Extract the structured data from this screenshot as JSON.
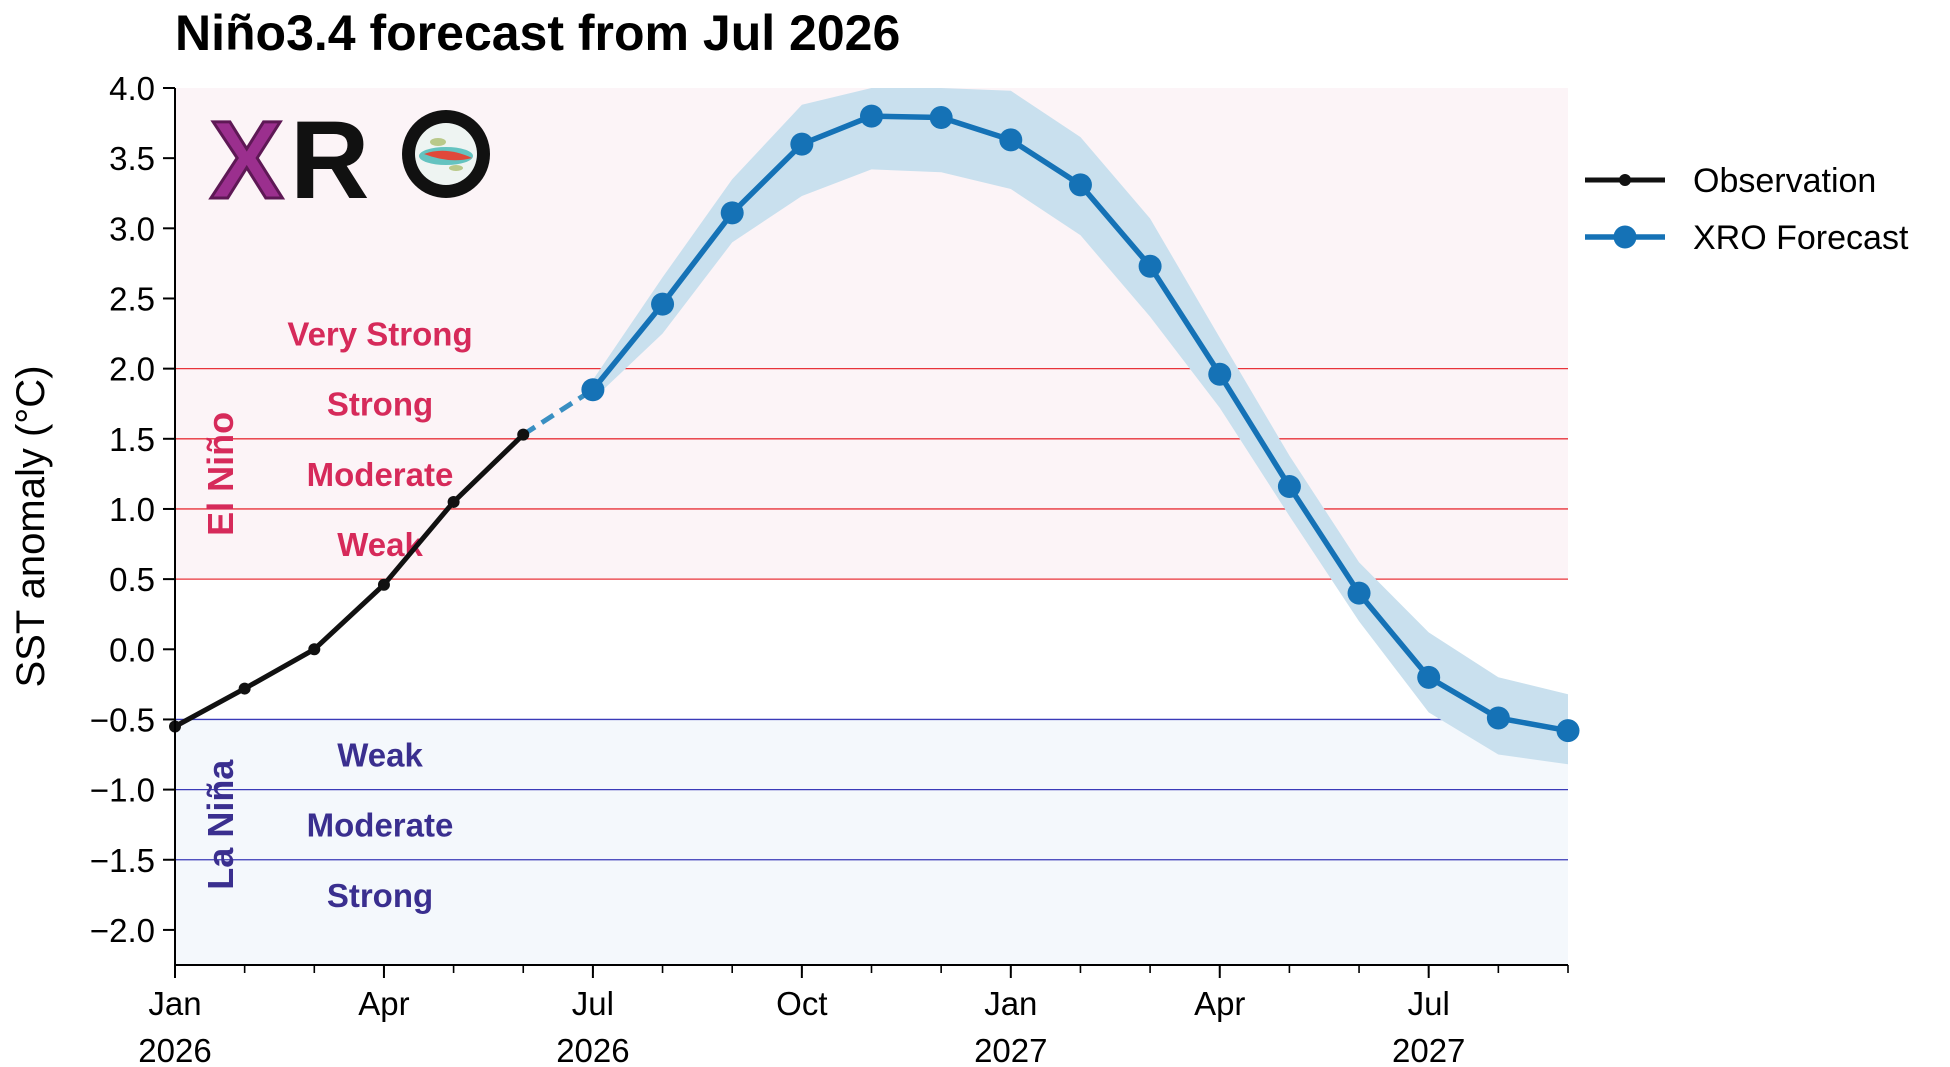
{
  "chart_data": {
    "type": "line",
    "title": "Niño3.4 forecast from Jul 2026",
    "ylabel": "SST anomaly (°C)",
    "xlabel": "",
    "ylim": [
      -2.25,
      4.0
    ],
    "yticks": [
      -2.0,
      -1.5,
      -1.0,
      -0.5,
      0.0,
      0.5,
      1.0,
      1.5,
      2.0,
      2.5,
      3.0,
      3.5,
      4.0
    ],
    "ytick_labels": [
      "−2.0",
      "−1.5",
      "−1.0",
      "−0.5",
      "0.0",
      "0.5",
      "1.0",
      "1.5",
      "2.0",
      "2.5",
      "3.0",
      "3.5",
      "4.0"
    ],
    "xlim": [
      "2026-01",
      "2027-09"
    ],
    "xticks": [
      {
        "month": "2026-01",
        "label1": "Jan",
        "label2": "2026"
      },
      {
        "month": "2026-04",
        "label1": "Apr",
        "label2": ""
      },
      {
        "month": "2026-07",
        "label1": "Jul",
        "label2": "2026"
      },
      {
        "month": "2026-10",
        "label1": "Oct",
        "label2": ""
      },
      {
        "month": "2027-01",
        "label1": "Jan",
        "label2": "2027"
      },
      {
        "month": "2027-04",
        "label1": "Apr",
        "label2": ""
      },
      {
        "month": "2027-07",
        "label1": "Jul",
        "label2": "2027"
      }
    ],
    "series": [
      {
        "name": "Observation",
        "color": "#111111",
        "x": [
          "2026-01",
          "2026-02",
          "2026-03",
          "2026-04",
          "2026-05",
          "2026-06"
        ],
        "y": [
          -0.55,
          -0.28,
          0.0,
          0.46,
          1.05,
          1.53
        ]
      },
      {
        "name": "XRO Forecast",
        "color": "#1572b6",
        "x": [
          "2026-07",
          "2026-08",
          "2026-09",
          "2026-10",
          "2026-11",
          "2026-12",
          "2027-01",
          "2027-02",
          "2027-03",
          "2027-04",
          "2027-05",
          "2027-06",
          "2027-07",
          "2027-08",
          "2027-09"
        ],
        "y": [
          1.85,
          2.46,
          3.11,
          3.6,
          3.8,
          3.79,
          3.63,
          3.31,
          2.73,
          1.96,
          1.16,
          0.4,
          -0.2,
          -0.49,
          -0.58
        ],
        "lower": [
          1.78,
          2.25,
          2.9,
          3.23,
          3.42,
          3.4,
          3.28,
          2.95,
          2.37,
          1.72,
          0.95,
          0.2,
          -0.45,
          -0.75,
          -0.82
        ],
        "upper": [
          1.92,
          2.65,
          3.35,
          3.88,
          4.05,
          4.1,
          3.98,
          3.65,
          3.07,
          2.22,
          1.38,
          0.62,
          0.12,
          -0.2,
          -0.32
        ]
      }
    ],
    "bridge_color": "#3a8fc2",
    "thresholds": [
      2.0,
      1.5,
      1.0,
      0.5,
      -0.5,
      -1.0,
      -1.5
    ],
    "el_nino": {
      "label": "El Niño",
      "categories": [
        {
          "label": "Very Strong",
          "y": 2.25
        },
        {
          "label": "Strong",
          "y": 1.75
        },
        {
          "label": "Moderate",
          "y": 1.25
        },
        {
          "label": "Weak",
          "y": 0.75
        }
      ],
      "line_color": "#e8333a",
      "shade_color": "#fcf4f7"
    },
    "la_nina": {
      "label": "La Niña",
      "categories": [
        {
          "label": "Weak",
          "y": -0.75
        },
        {
          "label": "Moderate",
          "y": -1.25
        },
        {
          "label": "Strong",
          "y": -1.75
        }
      ],
      "line_color": "#3a3ab8",
      "shade_color": "#f4f8fc"
    },
    "legend": {
      "placement": "right",
      "entries": [
        {
          "label": "Observation",
          "color": "#111111",
          "style": "small-dot"
        },
        {
          "label": "XRO Forecast",
          "color": "#1572b6",
          "style": "large-dot"
        }
      ]
    },
    "band_color": "#c9e0ee",
    "grid": false
  },
  "logo": {
    "text": "XRO",
    "letter_colors": [
      "#9b2f8e",
      "#111111",
      "#111111"
    ]
  }
}
